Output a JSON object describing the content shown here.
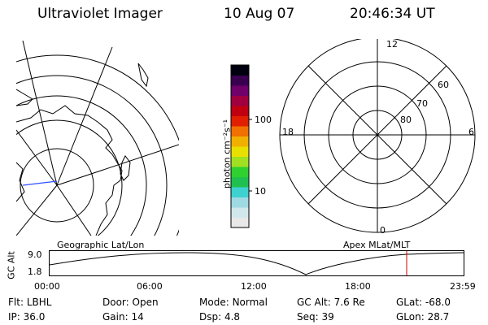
{
  "header": {
    "instrument": "Ultraviolet Imager",
    "date": "10 Aug 07",
    "time": "20:46:34 UT"
  },
  "colorbar": {
    "unit_label": "photon cm⁻²s⁻¹",
    "tick_100": "100",
    "tick_10": "10",
    "colors": [
      "#e8e8e8",
      "#d0e8ec",
      "#9fd9e3",
      "#3fd0d0",
      "#20c050",
      "#30d030",
      "#a0e020",
      "#e8e000",
      "#f0b000",
      "#f07000",
      "#e02000",
      "#c00010",
      "#a00040",
      "#70006a",
      "#3a0050",
      "#000010"
    ]
  },
  "geo_map": {
    "label": "Geographic Lat/Lon"
  },
  "polar_plot": {
    "label": "Apex MLat/MLT",
    "mlt_labels": {
      "top": "12",
      "bottom": "0",
      "left": "18",
      "right": "6"
    },
    "lat_labels": [
      "60",
      "70",
      "80"
    ]
  },
  "altitude_plot": {
    "y_label": "GC Alt",
    "y_ticks": [
      "9.0",
      "1.8"
    ],
    "x_ticks": [
      "00:00",
      "06:00",
      "12:00",
      "18:00",
      "23:59"
    ],
    "marker_color": "#d00000"
  },
  "status": {
    "row1": [
      {
        "label": "Flt:",
        "value": "LBHL"
      },
      {
        "label": "Door:",
        "value": "Open"
      },
      {
        "label": "Mode:",
        "value": "Normal"
      },
      {
        "label": "GC Alt:",
        "value": "7.6 Re"
      },
      {
        "label": "GLat:",
        "value": "-68.0"
      }
    ],
    "row2": [
      {
        "label": "IP:",
        "value": "36.0"
      },
      {
        "label": "Gain:",
        "value": "14"
      },
      {
        "label": "Dsp:",
        "value": "4.8"
      },
      {
        "label": "Seq:",
        "value": "39"
      },
      {
        "label": "GLon:",
        "value": "28.7"
      }
    ]
  }
}
